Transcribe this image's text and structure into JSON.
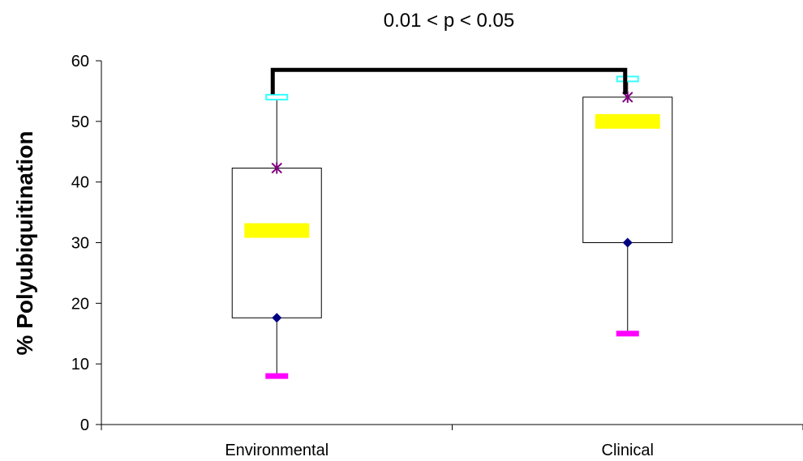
{
  "chart_data": {
    "type": "box",
    "title": "",
    "xlabel": "",
    "ylabel": "% Polyubiquitination",
    "ylim": [
      0,
      60
    ],
    "yticks": [
      0,
      10,
      20,
      30,
      40,
      50,
      60
    ],
    "grid": false,
    "legend": "none",
    "categories": [
      "Environmental",
      "Clinical"
    ],
    "boxes": [
      {
        "category": "Environmental",
        "min": 8,
        "q1": 17.6,
        "median": 32,
        "q3": 42.3,
        "max": 54
      },
      {
        "category": "Clinical",
        "min": 15,
        "q1": 30,
        "median": 50,
        "q3": 54,
        "max": 57
      }
    ],
    "annotation": {
      "text": "0.01 < p < 0.05",
      "between": [
        "Environmental",
        "Clinical"
      ],
      "at_value": 58.5
    },
    "marker_colors": {
      "min": "#ff00ff",
      "q1": "#000080",
      "median": "#ffff00",
      "q3": "#800080",
      "max": "#33ffff",
      "box": "#000000",
      "bracket": "#000000"
    }
  }
}
